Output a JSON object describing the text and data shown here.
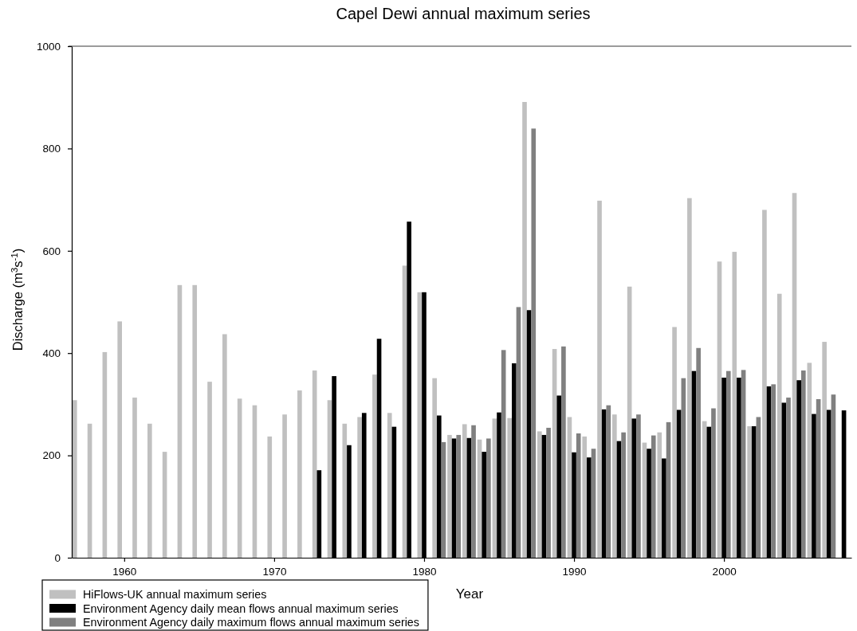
{
  "chart_data": {
    "type": "bar",
    "title": "Capel Dewi annual maximum series",
    "xlabel": "Year",
    "ylabel": "Discharge (m$^{3}$s$^{-1}$)",
    "x": [
      1957,
      1958,
      1959,
      1960,
      1961,
      1962,
      1963,
      1964,
      1965,
      1966,
      1967,
      1968,
      1969,
      1970,
      1971,
      1972,
      1973,
      1974,
      1975,
      1976,
      1977,
      1978,
      1979,
      1980,
      1981,
      1982,
      1983,
      1984,
      1985,
      1986,
      1987,
      1988,
      1989,
      1990,
      1991,
      1992,
      1993,
      1994,
      1995,
      1996,
      1997,
      1998,
      1999,
      2000,
      2001,
      2002,
      2003,
      2004,
      2005,
      2006,
      2007,
      2008
    ],
    "xlim": [
      1956.5,
      2008.5
    ],
    "xticks": [
      1960,
      1970,
      1980,
      1990,
      2000
    ],
    "ylim": [
      0,
      1000
    ],
    "yticks": [
      0,
      200,
      400,
      600,
      800,
      1000
    ],
    "legend": "bottom left",
    "series": [
      {
        "name": "HiFlows-UK annual maximum series",
        "color": "#c0c0c0",
        "values": [
          308,
          262,
          402,
          462,
          313,
          262,
          207,
          533,
          533,
          344,
          437,
          311,
          298,
          237,
          280,
          327,
          366,
          308,
          262,
          275,
          358,
          283,
          571,
          519,
          351,
          240,
          261,
          231,
          272,
          273,
          891,
          247,
          408,
          275,
          237,
          698,
          280,
          530,
          225,
          245,
          451,
          703,
          267,
          579,
          598,
          257,
          680,
          516,
          713,
          381,
          422,
          null
        ]
      },
      {
        "name": "Environment Agency daily mean flows annual maximum series",
        "color": "#000000",
        "values": [
          null,
          null,
          null,
          null,
          null,
          null,
          null,
          null,
          null,
          null,
          null,
          null,
          null,
          null,
          null,
          null,
          171,
          355,
          220,
          283,
          428,
          256,
          657,
          519,
          278,
          233,
          234,
          207,
          284,
          380,
          484,
          240,
          317,
          206,
          196,
          290,
          228,
          272,
          213,
          194,
          289,
          365,
          256,
          352,
          352,
          257,
          335,
          303,
          347,
          281,
          289,
          288
        ]
      },
      {
        "name": "Environment Agency daily maximum flows annual maximum series",
        "color": "#808080",
        "values": [
          null,
          null,
          null,
          null,
          null,
          null,
          null,
          null,
          null,
          null,
          null,
          null,
          null,
          null,
          null,
          null,
          null,
          null,
          null,
          null,
          null,
          null,
          null,
          null,
          226,
          240,
          259,
          233,
          406,
          490,
          839,
          254,
          413,
          243,
          213,
          298,
          245,
          280,
          239,
          265,
          351,
          410,
          292,
          365,
          367,
          275,
          339,
          313,
          366,
          310,
          319,
          null
        ]
      }
    ]
  }
}
